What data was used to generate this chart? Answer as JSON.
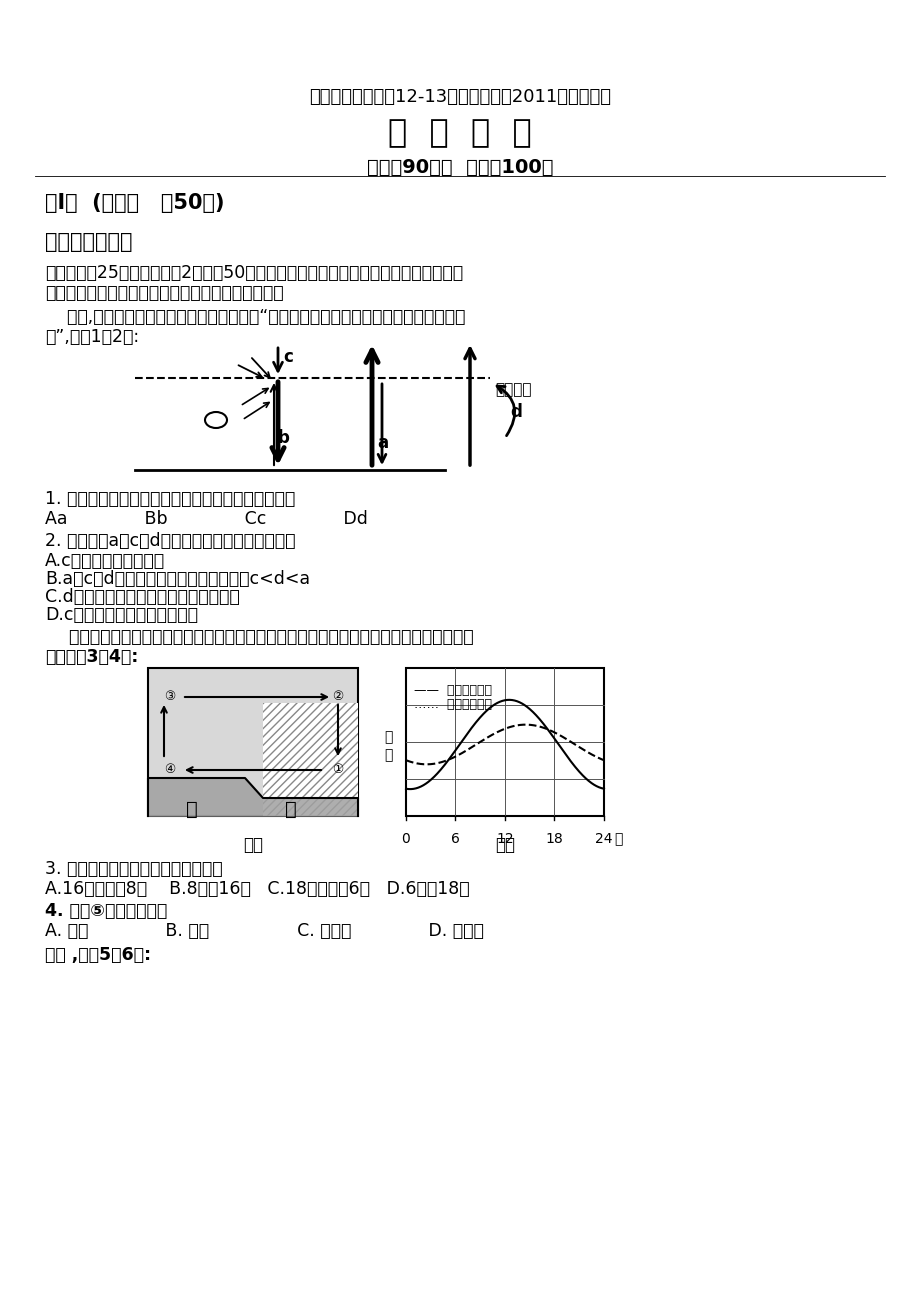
{
  "bg_color": "#ffffff",
  "title1": "成都七中实验学校12-13学年度下期高2011级三月月考",
  "title2": "地  理  试  题",
  "title3": "时间：90分钟  满分：100分",
  "section1": "第Ⅰ卷  (选择题   共50分)",
  "section2": "一、单项选择题",
  "intro_line1": "（本大题共25小题，每小题2分，共50分。在每小题给出的四个选项中，只有一项符合",
  "intro_line2": "题目的要求。请将正确答案的代号涂在答题卡中。）",
  "q_intro_line1": "    冬季,农民用人造烟幕防止农作物受冻。读“太阳辐射和地面辐射、大气逆辐射关系示意",
  "q_intro_line2": "图”,回答1～2题:",
  "q1_text": "1. 图中箭头能表示人造烟幕防止农作物受冻原理的是",
  "q1_opts": "Aa              Bb              Cc              Dd",
  "q2_text": "2. 关于图中a、c、d所代表的内容，叙述正确的是",
  "q2_a": "A.c代表大气的直接热源",
  "q2_b": "B.a、c、d代表的辐射波长的大小关系是c<d<a",
  "q2_c": "C.d代表的辐射主要被大气中的臭氧吸收",
  "q2_d": "D.c代表的辐射与天气状况无关",
  "q_intro2_line1": "    下面甲、乙两图分别表示北半球某海滨地区某日海陆上空大气运动和海陆气温变化情况。",
  "q_intro2_line2": "据此回答3～4题:",
  "q3_text": "3. 由图乙可推知图甲出现的时间约为",
  "q3_opts": "A.16时至次日8时    B.8时至16时   C.18时至次日6时   D.6时至18时",
  "q4_text": "4. 图甲⑤处此时风向是",
  "q4_label": "A. 西风              B. 东风                C. 西北风              D. 东南风",
  "q5_intro": "读图 ,回答5～6题:",
  "legend_land": "——  陆地气温曲线",
  "legend_sea": "……  海洋气温曲线",
  "label_jia": "图甲",
  "label_yi": "图乙",
  "label_lu": "陆",
  "label_hai": "海",
  "label_atm": "大气上界",
  "label_qi": "气",
  "label_wen": "温",
  "circ_labels": [
    "①",
    "②",
    "③",
    "④"
  ]
}
